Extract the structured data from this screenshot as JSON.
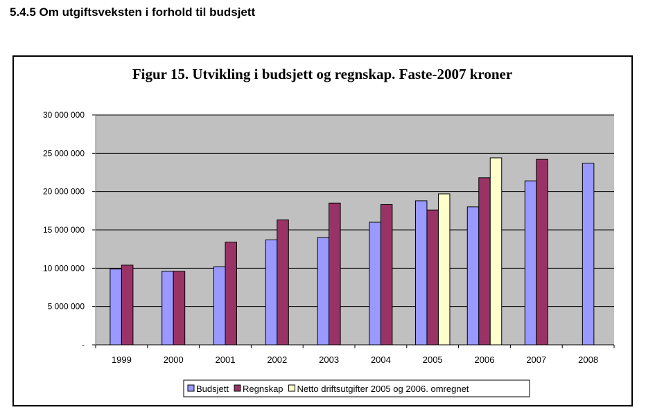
{
  "heading": "5.4.5 Om utgiftsveksten i forhold til budsjett",
  "chart_data": {
    "type": "bar",
    "title": "Figur 15. Utvikling i budsjett og regnskap. Faste-2007 kroner",
    "xlabel": "",
    "ylabel": "",
    "ylim": [
      0,
      30000000
    ],
    "yticks": [
      0,
      5000000,
      10000000,
      15000000,
      20000000,
      25000000,
      30000000
    ],
    "ytick_labels": [
      "-",
      "5 000 000",
      "10 000 000",
      "15 000 000",
      "20 000 000",
      "25 000 000",
      "30 000 000"
    ],
    "grid": true,
    "legend_position": "bottom",
    "categories": [
      "1999",
      "2000",
      "2001",
      "2002",
      "2003",
      "2004",
      "2005",
      "2006",
      "2007",
      "2008"
    ],
    "series": [
      {
        "name": "Budsjett",
        "color": "#9999ff",
        "values": [
          9900000,
          9600000,
          10200000,
          13700000,
          14000000,
          16000000,
          18800000,
          18000000,
          21400000,
          23700000
        ]
      },
      {
        "name": "Regnskap",
        "color": "#993366",
        "values": [
          10400000,
          9600000,
          13400000,
          16300000,
          18500000,
          18300000,
          17600000,
          21800000,
          24200000,
          null
        ]
      },
      {
        "name": "Netto driftsutgifter 2005 og 2006. omregnet",
        "color": "#ffffcc",
        "values": [
          null,
          null,
          null,
          null,
          null,
          null,
          19700000,
          24400000,
          null,
          null
        ]
      }
    ]
  }
}
